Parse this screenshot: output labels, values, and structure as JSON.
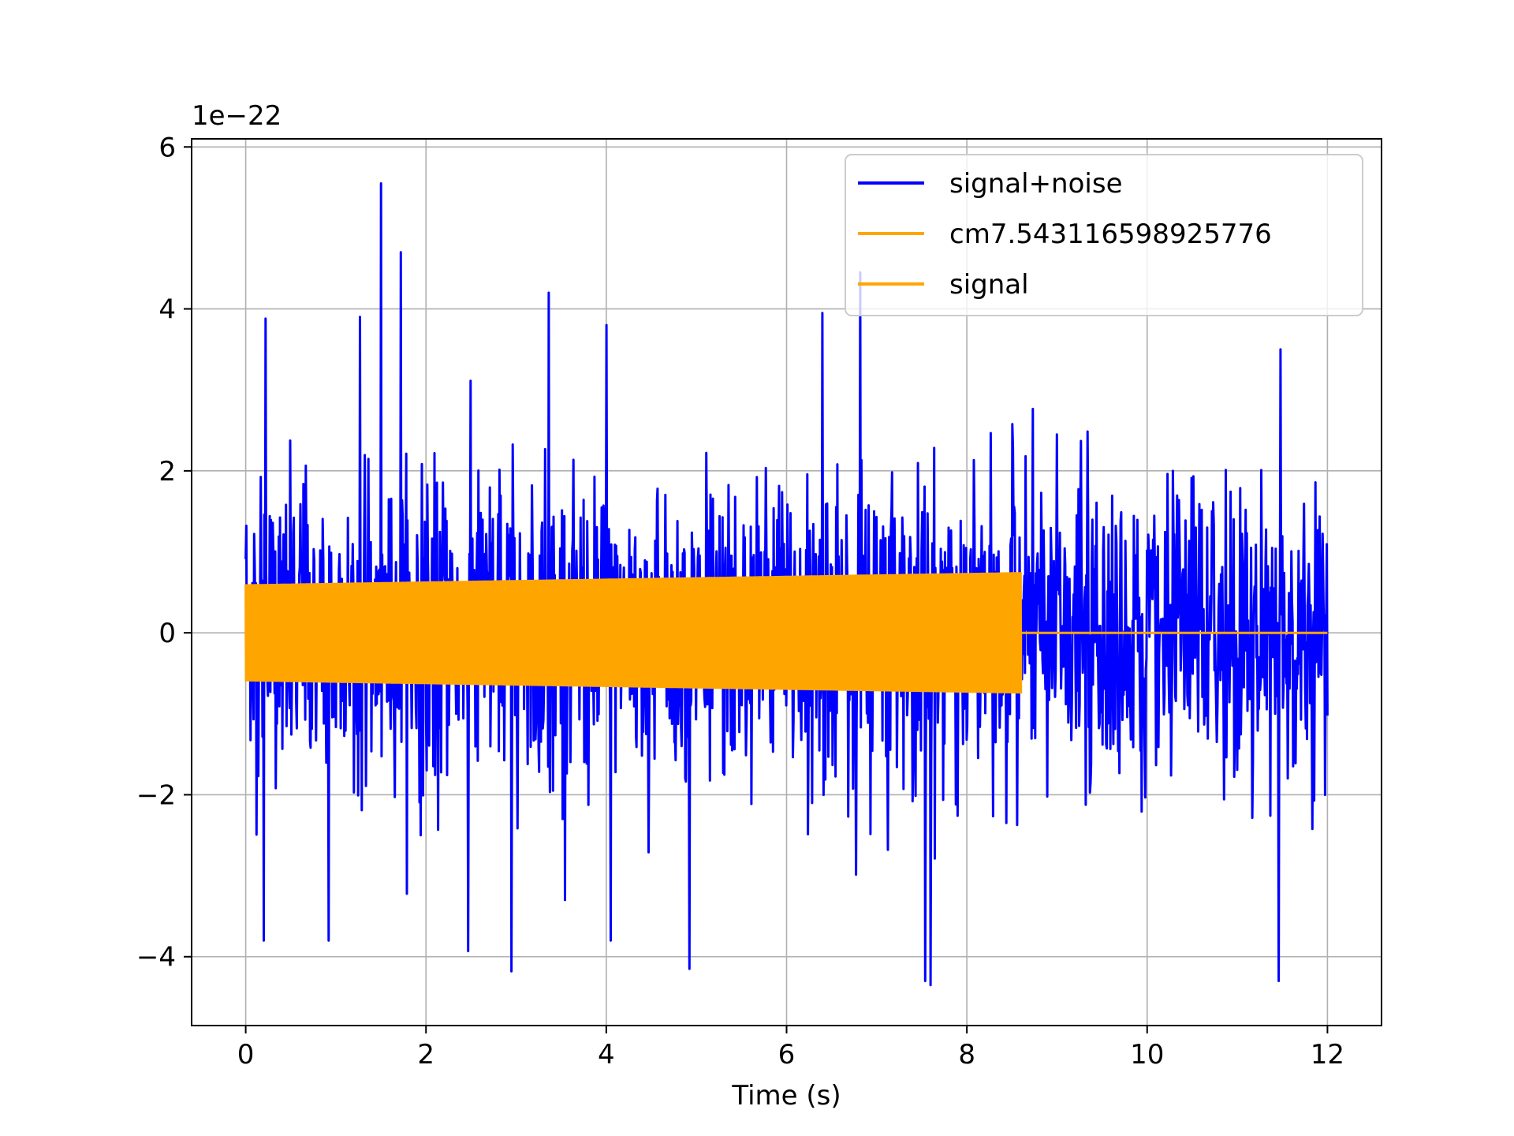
{
  "chart_data": {
    "type": "line",
    "xlabel": "Time (s)",
    "ylabel": "",
    "title": "",
    "y_offset_text": "1e−22",
    "y_scale_factor": 1e-22,
    "xlim": [
      -0.6,
      12.6
    ],
    "ylim": [
      -4.85,
      6.1
    ],
    "x_ticks": [
      0,
      2,
      4,
      6,
      8,
      10,
      12
    ],
    "x_tick_labels": [
      "0",
      "2",
      "4",
      "6",
      "8",
      "10",
      "12"
    ],
    "y_ticks": [
      -4,
      -2,
      0,
      2,
      4,
      6
    ],
    "y_tick_labels": [
      "−4",
      "−2",
      "0",
      "2",
      "4",
      "6"
    ],
    "grid": true,
    "legend_position": "top-right",
    "series": [
      {
        "name": "signal+noise",
        "color": "#0000ff",
        "x_range": [
          0,
          12
        ],
        "approx_std_1e-22": 0.9,
        "range_1e-22": [
          -4.3,
          5.6
        ],
        "spikes": [
          {
            "x": 1.5,
            "y": 5.55
          },
          {
            "x": 1.72,
            "y": 4.7
          },
          {
            "x": 3.36,
            "y": 4.2
          },
          {
            "x": 6.82,
            "y": 4.45
          },
          {
            "x": 0.22,
            "y": 3.88
          },
          {
            "x": 1.27,
            "y": 3.9
          },
          {
            "x": 4.0,
            "y": 3.8
          },
          {
            "x": 6.4,
            "y": 3.95
          },
          {
            "x": 11.48,
            "y": 3.5
          },
          {
            "x": 0.2,
            "y": -3.8
          },
          {
            "x": 0.92,
            "y": -3.8
          },
          {
            "x": 2.95,
            "y": -4.18
          },
          {
            "x": 4.92,
            "y": -4.15
          },
          {
            "x": 7.54,
            "y": -4.3
          },
          {
            "x": 7.6,
            "y": -4.35
          },
          {
            "x": 11.46,
            "y": -4.3
          },
          {
            "x": 4.05,
            "y": -3.8
          },
          {
            "x": 2.47,
            "y": -3.93
          }
        ]
      },
      {
        "name": "cm7.543116598925776",
        "color": "#ffa500",
        "x_range": [
          0,
          12
        ],
        "envelope_start_1e-22": 0.6,
        "envelope_end_1e-22": 0.75,
        "chirp_end_x": 8.6
      },
      {
        "name": "signal",
        "color": "#ffa500",
        "x_range": [
          0,
          12
        ],
        "envelope_start_1e-22": 0.6,
        "envelope_end_1e-22": 0.75,
        "chirp_end_x": 8.6
      }
    ]
  }
}
